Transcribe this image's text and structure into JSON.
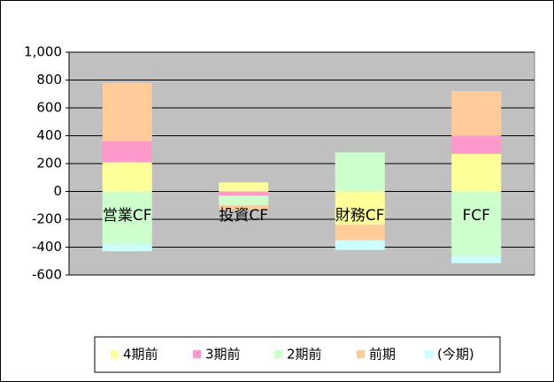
{
  "chart_data": {
    "type": "stacked-bar",
    "categories": [
      "営業CF",
      "投資CF",
      "財務CF",
      "FCF"
    ],
    "series": [
      {
        "name": "4期前",
        "color": "#ffff99",
        "values": [
          210,
          65,
          -240,
          270
        ]
      },
      {
        "name": "3期前",
        "color": "#ff99cc",
        "values": [
          150,
          -30,
          0,
          130
        ]
      },
      {
        "name": "2期前",
        "color": "#ccffcc",
        "values": [
          -380,
          -70,
          280,
          -460
        ]
      },
      {
        "name": "前期",
        "color": "#ffcc99",
        "values": [
          420,
          -30,
          -110,
          320
        ]
      },
      {
        "name": "(今期)",
        "color": "#ccffff",
        "values": [
          -50,
          0,
          -70,
          -55
        ]
      }
    ],
    "ylim": [
      -600,
      1000
    ],
    "yticks": [
      -600,
      -400,
      -200,
      0,
      200,
      400,
      600,
      800,
      {
        "value": 1000,
        "label": "1,000"
      }
    ],
    "grid": true,
    "legend": "bottom"
  }
}
